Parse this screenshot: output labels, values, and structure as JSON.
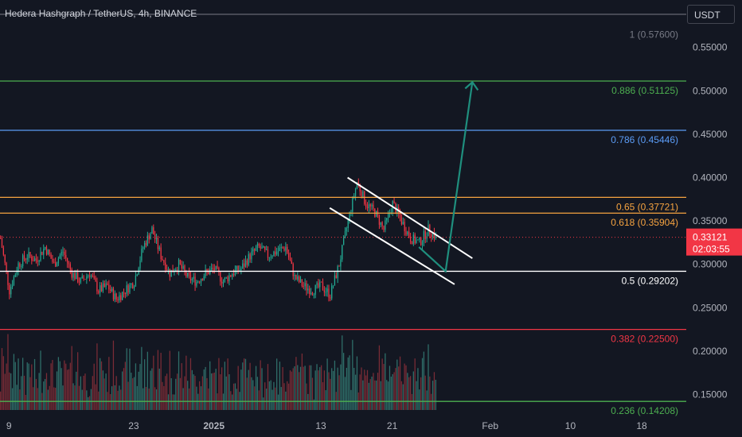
{
  "header": {
    "pair": "Hedera Hashgraph / TetherUS",
    "timeframe": "4h",
    "exchange": "BINANCE",
    "sep1": ", ",
    "sep2": ", "
  },
  "currency_button": "USDT",
  "colors": {
    "background": "#131722",
    "axis_text": "#b2b5be",
    "up": "#22ab94",
    "down": "#f23645",
    "volume_up": "#2f6f6a",
    "volume_down": "#7a2c36",
    "price_tag": "#f23645",
    "trend_line": "#ffffff",
    "projection": "#1f8f7e"
  },
  "price_tag": {
    "price": "0.33121",
    "countdown": "02:03:55"
  },
  "chart_data": {
    "type": "candlestick",
    "title": "Hedera Hashgraph / TetherUS, 4h, BINANCE",
    "y_axis": {
      "range": [
        0.123,
        0.59
      ],
      "ticks": [
        "0.55000",
        "0.50000",
        "0.45000",
        "0.40000",
        "0.35000",
        "0.30000",
        "0.25000",
        "0.20000",
        "0.15000"
      ],
      "tick_values": [
        0.55,
        0.5,
        0.45,
        0.4,
        0.35,
        0.3,
        0.25,
        0.2,
        0.15
      ],
      "side": "right"
    },
    "x_axis": {
      "ticks": [
        "9",
        "23",
        "2025",
        "13",
        "21",
        "Feb",
        "10",
        "18"
      ],
      "tick_dates": [
        "2024-12-09",
        "2024-12-23",
        "2025-01-01",
        "2025-01-13",
        "2025-01-21",
        "2025-02-01",
        "2025-02-10",
        "2025-02-18"
      ],
      "range": [
        "2024-12-08",
        "2025-02-23"
      ]
    },
    "fib_levels": [
      {
        "ratio": "1",
        "price": 0.576,
        "label": "1 (0.57600)",
        "color": "#787b86",
        "line": false
      },
      {
        "ratio": "0.886",
        "price": 0.51125,
        "label": "0.886 (0.51125)",
        "color": "#4caf50",
        "line": true
      },
      {
        "ratio": "0.786",
        "price": 0.45446,
        "label": "0.786 (0.45446)",
        "color": "#5b9cf6",
        "line": true
      },
      {
        "ratio": "0.65",
        "price": 0.37721,
        "label": "0.65 (0.37721)",
        "color": "#f7a440",
        "line": true
      },
      {
        "ratio": "0.618",
        "price": 0.35904,
        "label": "0.618 (0.35904)",
        "color": "#f7a440",
        "line": true
      },
      {
        "ratio": "0.5",
        "price": 0.29202,
        "label": "0.5 (0.29202)",
        "color": "#ffffff",
        "line": true
      },
      {
        "ratio": "0.382",
        "price": 0.225,
        "label": "0.382 (0.22500)",
        "color": "#f23645",
        "line": true
      },
      {
        "ratio": "0.236",
        "price": 0.14208,
        "label": "0.236 (0.14208)",
        "color": "#4caf50",
        "line": true
      }
    ],
    "current_price": 0.33121,
    "price_path": [
      [
        "2024-12-08",
        0.33
      ],
      [
        "2024-12-09",
        0.27
      ],
      [
        "2024-12-10",
        0.3
      ],
      [
        "2024-12-11",
        0.31
      ],
      [
        "2024-12-12",
        0.305
      ],
      [
        "2024-12-13",
        0.32
      ],
      [
        "2024-12-14",
        0.3
      ],
      [
        "2024-12-15",
        0.315
      ],
      [
        "2024-12-16",
        0.29
      ],
      [
        "2024-12-17",
        0.28
      ],
      [
        "2024-12-18",
        0.29
      ],
      [
        "2024-12-19",
        0.27
      ],
      [
        "2024-12-20",
        0.275
      ],
      [
        "2024-12-21",
        0.26
      ],
      [
        "2024-12-22",
        0.27
      ],
      [
        "2024-12-23",
        0.28
      ],
      [
        "2024-12-24",
        0.32
      ],
      [
        "2024-12-25",
        0.34
      ],
      [
        "2024-12-26",
        0.31
      ],
      [
        "2024-12-27",
        0.29
      ],
      [
        "2024-12-28",
        0.3
      ],
      [
        "2024-12-29",
        0.285
      ],
      [
        "2024-12-30",
        0.28
      ],
      [
        "2024-12-31",
        0.29
      ],
      [
        "2025-01-01",
        0.295
      ],
      [
        "2025-01-02",
        0.28
      ],
      [
        "2025-01-03",
        0.29
      ],
      [
        "2025-01-04",
        0.295
      ],
      [
        "2025-01-05",
        0.31
      ],
      [
        "2025-01-06",
        0.32
      ],
      [
        "2025-01-07",
        0.31
      ],
      [
        "2025-01-08",
        0.315
      ],
      [
        "2025-01-09",
        0.32
      ],
      [
        "2025-01-10",
        0.285
      ],
      [
        "2025-01-11",
        0.275
      ],
      [
        "2025-01-12",
        0.27
      ],
      [
        "2025-01-13",
        0.275
      ],
      [
        "2025-01-14",
        0.265
      ],
      [
        "2025-01-15",
        0.3
      ],
      [
        "2025-01-16",
        0.35
      ],
      [
        "2025-01-17",
        0.395
      ],
      [
        "2025-01-18",
        0.37
      ],
      [
        "2025-01-19",
        0.36
      ],
      [
        "2025-01-20",
        0.34
      ],
      [
        "2025-01-21",
        0.37
      ],
      [
        "2025-01-22",
        0.35
      ],
      [
        "2025-01-23",
        0.33
      ],
      [
        "2025-01-24",
        0.325
      ],
      [
        "2025-01-25",
        0.34
      ],
      [
        "2025-01-26",
        0.331
      ]
    ],
    "annotations": {
      "channel_upper": [
        [
          "2025-01-16",
          0.4
        ],
        [
          "2025-01-30",
          0.307
        ]
      ],
      "channel_lower": [
        [
          "2025-01-14",
          0.365
        ],
        [
          "2025-01-28",
          0.277
        ]
      ],
      "projection_arrow": [
        [
          "2025-01-24",
          0.32
        ],
        [
          "2025-01-27",
          0.292
        ],
        [
          "2025-01-30",
          0.51
        ]
      ]
    },
    "grid": false,
    "legend": "none"
  }
}
